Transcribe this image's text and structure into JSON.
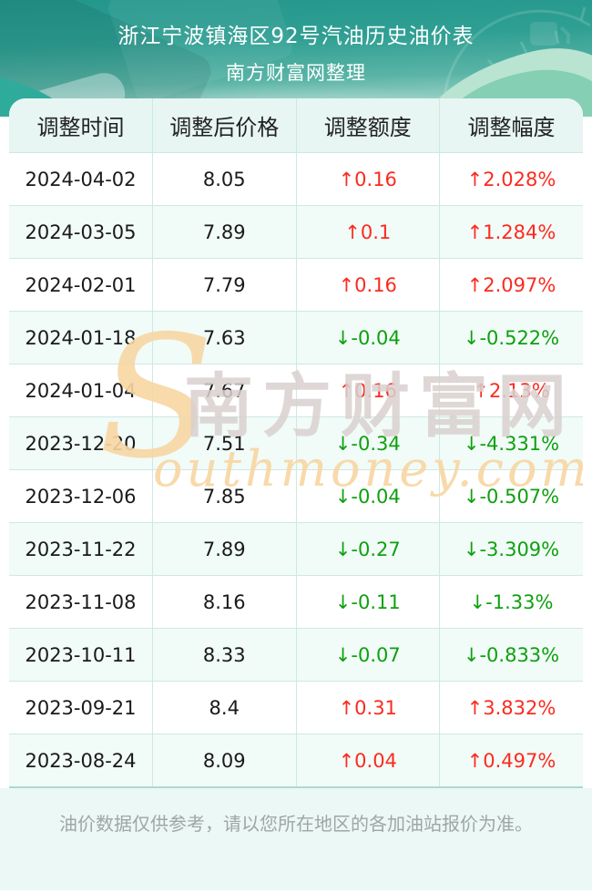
{
  "header": {
    "title": "浙江宁波镇海区92号汽油历史油价表",
    "subtitle": "南方财富网整理"
  },
  "table": {
    "columns": [
      "调整时间",
      "调整后价格",
      "调整额度",
      "调整幅度"
    ],
    "rows": [
      {
        "date": "2024-04-02",
        "price": "8.05",
        "change": "↑0.16",
        "change_pct": "↑2.028%",
        "trend": "up"
      },
      {
        "date": "2024-03-05",
        "price": "7.89",
        "change": "↑0.1",
        "change_pct": "↑1.284%",
        "trend": "up"
      },
      {
        "date": "2024-02-01",
        "price": "7.79",
        "change": "↑0.16",
        "change_pct": "↑2.097%",
        "trend": "up"
      },
      {
        "date": "2024-01-18",
        "price": "7.63",
        "change": "↓-0.04",
        "change_pct": "↓-0.522%",
        "trend": "down"
      },
      {
        "date": "2024-01-04",
        "price": "7.67",
        "change": "↑0.16",
        "change_pct": "↑2.13%",
        "trend": "up"
      },
      {
        "date": "2023-12-20",
        "price": "7.51",
        "change": "↓-0.34",
        "change_pct": "↓-4.331%",
        "trend": "down"
      },
      {
        "date": "2023-12-06",
        "price": "7.85",
        "change": "↓-0.04",
        "change_pct": "↓-0.507%",
        "trend": "down"
      },
      {
        "date": "2023-11-22",
        "price": "7.89",
        "change": "↓-0.27",
        "change_pct": "↓-3.309%",
        "trend": "down"
      },
      {
        "date": "2023-11-08",
        "price": "8.16",
        "change": "↓-0.11",
        "change_pct": "↓-1.33%",
        "trend": "down"
      },
      {
        "date": "2023-10-11",
        "price": "8.33",
        "change": "↓-0.07",
        "change_pct": "↓-0.833%",
        "trend": "down"
      },
      {
        "date": "2023-09-21",
        "price": "8.4",
        "change": "↑0.31",
        "change_pct": "↑3.832%",
        "trend": "up"
      },
      {
        "date": "2023-08-24",
        "price": "8.09",
        "change": "↑0.04",
        "change_pct": "↑0.497%",
        "trend": "up"
      }
    ]
  },
  "watermark": {
    "s": "S",
    "cn": "南方财富网",
    "en": "outhmoney.com"
  },
  "footer": {
    "note": "油价数据仅供参考，请以您所在地区的各加油站报价为准。"
  },
  "colors": {
    "up_red": "#fb2b1f",
    "down_green": "#0fa00f",
    "header_teal_dark": "#23968c",
    "header_teal_light": "#cfe9e2",
    "table_border": "#cde9e4",
    "header_row_bg": "#e7f6f3",
    "row_alt_bg": "#f1fbf8",
    "footer_bg": "#ebf8f5",
    "watermark_orange": "#f8d7a3",
    "watermark_gray": "#d9d1cf"
  }
}
